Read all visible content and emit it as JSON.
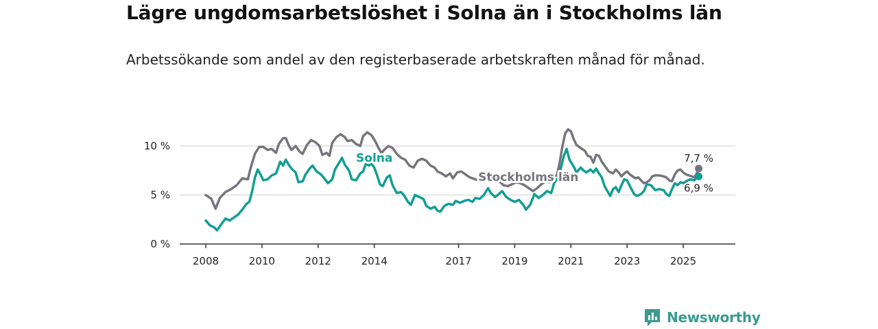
{
  "title": "Lägre ungdomsarbetslöshet i Solna än i Stockholms län",
  "subtitle": "Arbetssökande som andel av den registerbaserade arbetskraften månad för månad.",
  "brand": {
    "name": "Newsworthy",
    "icon": "newsworthy-logo-icon"
  },
  "colors": {
    "solna": "#119e94",
    "stockholm": "#75757d",
    "grid": "#dddddd",
    "axis": "#333333"
  },
  "chart_data": {
    "type": "line",
    "title": "Lägre ungdomsarbetslöshet i Solna än i Stockholms län",
    "subtitle": "Arbetssökande som andel av den registerbaserade arbetskraften månad för månad.",
    "xlabel": "",
    "ylabel": "",
    "xlim": [
      2008.0,
      2026.0
    ],
    "ylim": [
      0,
      10
    ],
    "y_ticks": [
      {
        "value": 0,
        "label": "0 %"
      },
      {
        "value": 5,
        "label": "5 %"
      },
      {
        "value": 10,
        "label": "10 %"
      }
    ],
    "x_ticks": [
      {
        "value": 2008,
        "label": "2008"
      },
      {
        "value": 2010,
        "label": "2010"
      },
      {
        "value": 2012,
        "label": "2012"
      },
      {
        "value": 2014,
        "label": "2014"
      },
      {
        "value": 2017,
        "label": "2017"
      },
      {
        "value": 2019,
        "label": "2019"
      },
      {
        "value": 2021,
        "label": "2021"
      },
      {
        "value": 2023,
        "label": "2023"
      },
      {
        "value": 2025,
        "label": "2025"
      }
    ],
    "grid": true,
    "legend": "inline labels",
    "series": [
      {
        "name": "Stockholms län",
        "color": "#75757d",
        "end_label": "7,7 %",
        "points": [
          [
            2008.0,
            5.0
          ],
          [
            2008.2,
            4.6
          ],
          [
            2008.35,
            3.6
          ],
          [
            2008.5,
            4.7
          ],
          [
            2008.7,
            5.3
          ],
          [
            2008.9,
            5.6
          ],
          [
            2009.1,
            6.0
          ],
          [
            2009.3,
            6.7
          ],
          [
            2009.5,
            6.6
          ],
          [
            2009.6,
            7.8
          ],
          [
            2009.75,
            9.2
          ],
          [
            2009.9,
            9.9
          ],
          [
            2010.05,
            9.9
          ],
          [
            2010.2,
            9.6
          ],
          [
            2010.35,
            9.7
          ],
          [
            2010.5,
            9.3
          ],
          [
            2010.6,
            10.2
          ],
          [
            2010.75,
            10.8
          ],
          [
            2010.85,
            10.8
          ],
          [
            2010.95,
            10.1
          ],
          [
            2011.05,
            9.6
          ],
          [
            2011.2,
            10.0
          ],
          [
            2011.35,
            9.4
          ],
          [
            2011.45,
            9.2
          ],
          [
            2011.6,
            10.1
          ],
          [
            2011.75,
            10.6
          ],
          [
            2011.9,
            10.4
          ],
          [
            2012.05,
            10.0
          ],
          [
            2012.15,
            9.1
          ],
          [
            2012.3,
            9.3
          ],
          [
            2012.4,
            9.0
          ],
          [
            2012.5,
            10.3
          ],
          [
            2012.65,
            10.9
          ],
          [
            2012.8,
            11.2
          ],
          [
            2012.95,
            10.9
          ],
          [
            2013.05,
            10.5
          ],
          [
            2013.2,
            10.6
          ],
          [
            2013.35,
            10.2
          ],
          [
            2013.5,
            10.0
          ],
          [
            2013.6,
            11.0
          ],
          [
            2013.75,
            11.4
          ],
          [
            2013.9,
            11.1
          ],
          [
            2014.05,
            10.4
          ],
          [
            2014.15,
            9.8
          ],
          [
            2014.25,
            9.3
          ],
          [
            2014.35,
            9.6
          ],
          [
            2014.5,
            10.0
          ],
          [
            2014.65,
            9.8
          ],
          [
            2014.8,
            9.2
          ],
          [
            2014.95,
            8.8
          ],
          [
            2015.1,
            8.6
          ],
          [
            2015.25,
            8.0
          ],
          [
            2015.4,
            7.8
          ],
          [
            2015.55,
            8.5
          ],
          [
            2015.7,
            8.7
          ],
          [
            2015.85,
            8.5
          ],
          [
            2016.0,
            8.0
          ],
          [
            2016.15,
            7.8
          ],
          [
            2016.25,
            7.4
          ],
          [
            2016.4,
            7.2
          ],
          [
            2016.55,
            6.9
          ],
          [
            2016.7,
            7.2
          ],
          [
            2016.8,
            6.7
          ],
          [
            2016.95,
            7.3
          ],
          [
            2017.1,
            7.4
          ],
          [
            2017.25,
            7.1
          ],
          [
            2017.4,
            6.8
          ],
          [
            2017.5,
            6.7
          ],
          [
            2017.6,
            6.6
          ],
          [
            2017.75,
            6.4
          ],
          [
            2017.85,
            6.5
          ],
          [
            2018.0,
            6.9
          ],
          [
            2018.15,
            7.1
          ],
          [
            2018.3,
            6.8
          ],
          [
            2018.45,
            6.4
          ],
          [
            2018.6,
            6.0
          ],
          [
            2018.75,
            5.9
          ],
          [
            2018.9,
            6.1
          ],
          [
            2019.05,
            6.3
          ],
          [
            2019.2,
            6.2
          ],
          [
            2019.35,
            6.0
          ],
          [
            2019.5,
            5.7
          ],
          [
            2019.65,
            5.4
          ],
          [
            2019.8,
            5.7
          ],
          [
            2019.95,
            6.1
          ],
          [
            2020.1,
            6.4
          ],
          [
            2020.25,
            6.3
          ],
          [
            2020.4,
            6.9
          ],
          [
            2020.5,
            7.0
          ],
          [
            2020.6,
            8.3
          ],
          [
            2020.7,
            10.0
          ],
          [
            2020.8,
            11.3
          ],
          [
            2020.9,
            11.7
          ],
          [
            2021.0,
            11.5
          ],
          [
            2021.1,
            10.7
          ],
          [
            2021.2,
            10.1
          ],
          [
            2021.35,
            9.8
          ],
          [
            2021.5,
            9.5
          ],
          [
            2021.6,
            9.0
          ],
          [
            2021.7,
            8.9
          ],
          [
            2021.8,
            8.3
          ],
          [
            2021.9,
            9.1
          ],
          [
            2022.0,
            9.0
          ],
          [
            2022.1,
            8.4
          ],
          [
            2022.2,
            8.0
          ],
          [
            2022.35,
            7.4
          ],
          [
            2022.5,
            7.2
          ],
          [
            2022.6,
            7.6
          ],
          [
            2022.7,
            7.3
          ],
          [
            2022.8,
            6.9
          ],
          [
            2022.9,
            7.2
          ],
          [
            2023.0,
            7.4
          ],
          [
            2023.1,
            7.1
          ],
          [
            2023.2,
            6.9
          ],
          [
            2023.3,
            6.7
          ],
          [
            2023.4,
            6.8
          ],
          [
            2023.5,
            6.5
          ],
          [
            2023.6,
            6.2
          ],
          [
            2023.7,
            6.3
          ],
          [
            2023.8,
            6.5
          ],
          [
            2023.9,
            6.9
          ],
          [
            2024.0,
            7.0
          ],
          [
            2024.15,
            7.0
          ],
          [
            2024.3,
            6.9
          ],
          [
            2024.4,
            6.8
          ],
          [
            2024.5,
            6.5
          ],
          [
            2024.6,
            6.4
          ],
          [
            2024.7,
            7.1
          ],
          [
            2024.8,
            7.5
          ],
          [
            2024.9,
            7.6
          ],
          [
            2025.0,
            7.3
          ],
          [
            2025.1,
            7.1
          ],
          [
            2025.2,
            7.0
          ],
          [
            2025.3,
            6.9
          ],
          [
            2025.4,
            6.8
          ],
          [
            2025.5,
            7.3
          ],
          [
            2025.55,
            7.7
          ]
        ]
      },
      {
        "name": "Solna",
        "color": "#119e94",
        "end_label": "6,9 %",
        "points": [
          [
            2008.0,
            2.4
          ],
          [
            2008.15,
            1.9
          ],
          [
            2008.3,
            1.7
          ],
          [
            2008.4,
            1.4
          ],
          [
            2008.55,
            2.0
          ],
          [
            2008.7,
            2.6
          ],
          [
            2008.85,
            2.4
          ],
          [
            2009.0,
            2.7
          ],
          [
            2009.15,
            3.0
          ],
          [
            2009.3,
            3.5
          ],
          [
            2009.45,
            4.1
          ],
          [
            2009.55,
            4.3
          ],
          [
            2009.65,
            5.4
          ],
          [
            2009.75,
            6.8
          ],
          [
            2009.85,
            7.6
          ],
          [
            2009.95,
            7.1
          ],
          [
            2010.05,
            6.5
          ],
          [
            2010.2,
            6.6
          ],
          [
            2010.35,
            7.0
          ],
          [
            2010.5,
            7.2
          ],
          [
            2010.65,
            8.4
          ],
          [
            2010.75,
            8.0
          ],
          [
            2010.85,
            8.6
          ],
          [
            2010.95,
            8.1
          ],
          [
            2011.05,
            7.7
          ],
          [
            2011.2,
            7.3
          ],
          [
            2011.3,
            6.3
          ],
          [
            2011.45,
            6.4
          ],
          [
            2011.55,
            7.1
          ],
          [
            2011.7,
            7.7
          ],
          [
            2011.8,
            8.0
          ],
          [
            2011.95,
            7.4
          ],
          [
            2012.1,
            7.1
          ],
          [
            2012.25,
            6.6
          ],
          [
            2012.35,
            6.2
          ],
          [
            2012.5,
            6.6
          ],
          [
            2012.6,
            7.6
          ],
          [
            2012.75,
            8.3
          ],
          [
            2012.85,
            8.8
          ],
          [
            2012.95,
            8.1
          ],
          [
            2013.1,
            7.5
          ],
          [
            2013.2,
            6.6
          ],
          [
            2013.35,
            6.5
          ],
          [
            2013.5,
            7.2
          ],
          [
            2013.6,
            7.4
          ],
          [
            2013.7,
            8.2
          ],
          [
            2013.8,
            8.0
          ],
          [
            2013.9,
            8.2
          ],
          [
            2014.0,
            7.8
          ],
          [
            2014.1,
            7.0
          ],
          [
            2014.2,
            6.1
          ],
          [
            2014.3,
            5.9
          ],
          [
            2014.45,
            6.8
          ],
          [
            2014.55,
            7.0
          ],
          [
            2014.65,
            6.0
          ],
          [
            2014.8,
            5.2
          ],
          [
            2014.95,
            5.3
          ],
          [
            2015.05,
            5.0
          ],
          [
            2015.2,
            4.3
          ],
          [
            2015.3,
            4.0
          ],
          [
            2015.45,
            5.0
          ],
          [
            2015.6,
            4.8
          ],
          [
            2015.75,
            4.6
          ],
          [
            2015.85,
            3.9
          ],
          [
            2016.0,
            3.6
          ],
          [
            2016.15,
            3.8
          ],
          [
            2016.25,
            3.4
          ],
          [
            2016.35,
            3.3
          ],
          [
            2016.5,
            3.9
          ],
          [
            2016.65,
            4.1
          ],
          [
            2016.8,
            4.0
          ],
          [
            2016.9,
            4.4
          ],
          [
            2017.05,
            4.2
          ],
          [
            2017.2,
            4.4
          ],
          [
            2017.35,
            4.5
          ],
          [
            2017.5,
            4.3
          ],
          [
            2017.6,
            4.7
          ],
          [
            2017.75,
            4.6
          ],
          [
            2017.9,
            5.0
          ],
          [
            2018.05,
            5.7
          ],
          [
            2018.15,
            5.2
          ],
          [
            2018.3,
            4.8
          ],
          [
            2018.4,
            5.0
          ],
          [
            2018.55,
            5.4
          ],
          [
            2018.7,
            4.8
          ],
          [
            2018.85,
            4.5
          ],
          [
            2019.0,
            4.3
          ],
          [
            2019.15,
            4.5
          ],
          [
            2019.3,
            4.0
          ],
          [
            2019.4,
            3.5
          ],
          [
            2019.55,
            4.0
          ],
          [
            2019.7,
            5.1
          ],
          [
            2019.85,
            4.7
          ],
          [
            2020.0,
            5.0
          ],
          [
            2020.15,
            5.4
          ],
          [
            2020.3,
            5.2
          ],
          [
            2020.4,
            6.2
          ],
          [
            2020.55,
            6.8
          ],
          [
            2020.65,
            7.8
          ],
          [
            2020.75,
            9.0
          ],
          [
            2020.85,
            9.7
          ],
          [
            2020.95,
            8.6
          ],
          [
            2021.1,
            7.9
          ],
          [
            2021.2,
            7.3
          ],
          [
            2021.35,
            7.8
          ],
          [
            2021.45,
            7.5
          ],
          [
            2021.55,
            7.3
          ],
          [
            2021.7,
            7.6
          ],
          [
            2021.8,
            7.3
          ],
          [
            2021.9,
            7.7
          ],
          [
            2022.0,
            7.2
          ],
          [
            2022.1,
            6.8
          ],
          [
            2022.2,
            5.9
          ],
          [
            2022.3,
            5.4
          ],
          [
            2022.4,
            4.9
          ],
          [
            2022.5,
            5.6
          ],
          [
            2022.6,
            5.8
          ],
          [
            2022.7,
            5.3
          ],
          [
            2022.8,
            6.0
          ],
          [
            2022.9,
            6.6
          ],
          [
            2023.0,
            6.5
          ],
          [
            2023.1,
            5.9
          ],
          [
            2023.25,
            5.1
          ],
          [
            2023.35,
            4.9
          ],
          [
            2023.5,
            5.1
          ],
          [
            2023.6,
            5.4
          ],
          [
            2023.7,
            6.1
          ],
          [
            2023.85,
            6.0
          ],
          [
            2024.0,
            5.5
          ],
          [
            2024.15,
            5.6
          ],
          [
            2024.3,
            5.5
          ],
          [
            2024.4,
            5.1
          ],
          [
            2024.5,
            4.9
          ],
          [
            2024.6,
            5.6
          ],
          [
            2024.7,
            6.2
          ],
          [
            2024.8,
            6.0
          ],
          [
            2024.9,
            6.3
          ],
          [
            2025.0,
            6.2
          ],
          [
            2025.1,
            6.4
          ],
          [
            2025.25,
            6.6
          ],
          [
            2025.4,
            6.5
          ],
          [
            2025.5,
            6.9
          ],
          [
            2025.55,
            6.9
          ]
        ]
      }
    ],
    "annotations": [
      {
        "series": "Solna",
        "text": "Solna"
      },
      {
        "series": "Stockholms län",
        "text": "Stockholms län"
      }
    ]
  }
}
